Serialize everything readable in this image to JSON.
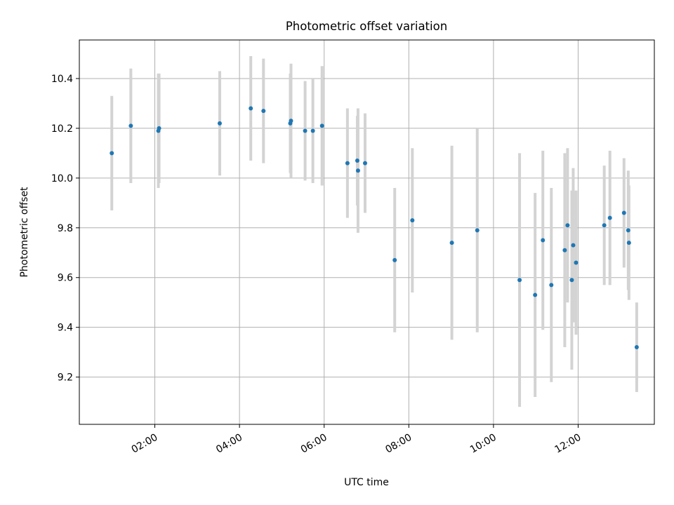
{
  "chart_data": {
    "type": "scatter",
    "title": "Photometric offset variation",
    "xlabel": "UTC time",
    "ylabel": "Photometric offset",
    "xlim": [
      "00:13",
      "13:48"
    ],
    "ylim": [
      9.01,
      10.555
    ],
    "x_ticks": [
      "02:00",
      "04:00",
      "06:00",
      "08:00",
      "10:00",
      "12:00"
    ],
    "y_ticks": [
      9.2,
      9.4,
      9.6,
      9.8,
      10.0,
      10.2,
      10.4
    ],
    "y_tick_labels": [
      "9.2",
      "9.4",
      "9.6",
      "9.8",
      "10.0",
      "10.2",
      "10.4"
    ],
    "grid": true,
    "marker_color": "#1f77b4",
    "errorbar_color": "#d3d3d3",
    "points": [
      {
        "x": "00:59",
        "y": 10.1,
        "err": 0.23
      },
      {
        "x": "01:26",
        "y": 10.21,
        "err": 0.23
      },
      {
        "x": "02:05",
        "y": 10.19,
        "err": 0.23
      },
      {
        "x": "02:06",
        "y": 10.2,
        "err": 0.22
      },
      {
        "x": "03:32",
        "y": 10.22,
        "err": 0.21
      },
      {
        "x": "04:16",
        "y": 10.28,
        "err": 0.21
      },
      {
        "x": "04:34",
        "y": 10.27,
        "err": 0.21
      },
      {
        "x": "05:12",
        "y": 10.22,
        "err": 0.2
      },
      {
        "x": "05:13",
        "y": 10.23,
        "err": 0.23
      },
      {
        "x": "05:33",
        "y": 10.19,
        "err": 0.2
      },
      {
        "x": "05:44",
        "y": 10.19,
        "err": 0.21
      },
      {
        "x": "05:57",
        "y": 10.21,
        "err": 0.24
      },
      {
        "x": "06:33",
        "y": 10.06,
        "err": 0.22
      },
      {
        "x": "06:47",
        "y": 10.07,
        "err": 0.18
      },
      {
        "x": "06:48",
        "y": 10.03,
        "err": 0.25
      },
      {
        "x": "06:58",
        "y": 10.06,
        "err": 0.2
      },
      {
        "x": "07:40",
        "y": 9.67,
        "err": 0.29
      },
      {
        "x": "08:05",
        "y": 9.83,
        "err": 0.29
      },
      {
        "x": "09:01",
        "y": 9.74,
        "err": 0.39
      },
      {
        "x": "09:37",
        "y": 9.79,
        "err": 0.41
      },
      {
        "x": "10:37",
        "y": 9.59,
        "err": 0.51
      },
      {
        "x": "10:59",
        "y": 9.53,
        "err": 0.41
      },
      {
        "x": "11:10",
        "y": 9.75,
        "err": 0.36
      },
      {
        "x": "11:22",
        "y": 9.57,
        "err": 0.39
      },
      {
        "x": "11:41",
        "y": 9.71,
        "err": 0.39
      },
      {
        "x": "11:45",
        "y": 9.81,
        "err": 0.31
      },
      {
        "x": "11:51",
        "y": 9.59,
        "err": 0.36
      },
      {
        "x": "11:53",
        "y": 9.73,
        "err": 0.31
      },
      {
        "x": "11:57",
        "y": 9.66,
        "err": 0.29
      },
      {
        "x": "12:37",
        "y": 9.81,
        "err": 0.24
      },
      {
        "x": "12:45",
        "y": 9.84,
        "err": 0.27
      },
      {
        "x": "13:05",
        "y": 9.86,
        "err": 0.22
      },
      {
        "x": "13:11",
        "y": 9.79,
        "err": 0.24
      },
      {
        "x": "13:12",
        "y": 9.74,
        "err": 0.23
      },
      {
        "x": "13:23",
        "y": 9.32,
        "err": 0.18
      }
    ]
  }
}
